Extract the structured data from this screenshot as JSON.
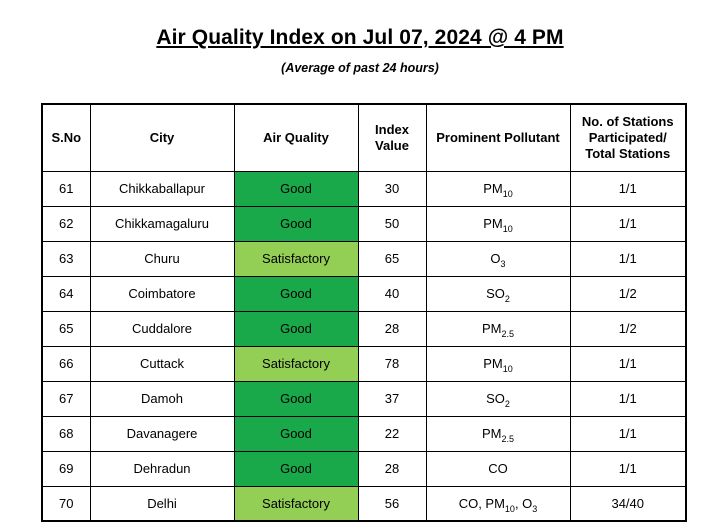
{
  "title": "Air Quality Index on Jul 07, 2024 @ 4 PM",
  "subtitle": "(Average of past 24 hours)",
  "columns": {
    "sno": "S.No",
    "city": "City",
    "air_quality": "Air Quality",
    "index_value_line1": "Index",
    "index_value_line2": "Value",
    "pollutant": "Prominent Pollutant",
    "stations_line1": "No. of Stations",
    "stations_line2": "Participated/",
    "stations_line3": "Total Stations"
  },
  "colors": {
    "Good": "#19a94a",
    "Satisfactory": "#93ce55"
  },
  "rows": [
    {
      "sno": "61",
      "city": "Chikkaballapur",
      "quality": "Good",
      "index": "30",
      "pollutant": [
        {
          "t": "PM"
        },
        {
          "t": "10",
          "sub": true
        }
      ],
      "stations": "1/1"
    },
    {
      "sno": "62",
      "city": "Chikkamagaluru",
      "quality": "Good",
      "index": "50",
      "pollutant": [
        {
          "t": "PM"
        },
        {
          "t": "10",
          "sub": true
        }
      ],
      "stations": "1/1"
    },
    {
      "sno": "63",
      "city": "Churu",
      "quality": "Satisfactory",
      "index": "65",
      "pollutant": [
        {
          "t": "O"
        },
        {
          "t": "3",
          "sub": true
        }
      ],
      "stations": "1/1"
    },
    {
      "sno": "64",
      "city": "Coimbatore",
      "quality": "Good",
      "index": "40",
      "pollutant": [
        {
          "t": "SO"
        },
        {
          "t": "2",
          "sub": true
        }
      ],
      "stations": "1/2"
    },
    {
      "sno": "65",
      "city": "Cuddalore",
      "quality": "Good",
      "index": "28",
      "pollutant": [
        {
          "t": "PM"
        },
        {
          "t": "2.5",
          "sub": true
        }
      ],
      "stations": "1/2"
    },
    {
      "sno": "66",
      "city": "Cuttack",
      "quality": "Satisfactory",
      "index": "78",
      "pollutant": [
        {
          "t": "PM"
        },
        {
          "t": "10",
          "sub": true
        }
      ],
      "stations": "1/1"
    },
    {
      "sno": "67",
      "city": "Damoh",
      "quality": "Good",
      "index": "37",
      "pollutant": [
        {
          "t": "SO"
        },
        {
          "t": "2",
          "sub": true
        }
      ],
      "stations": "1/1"
    },
    {
      "sno": "68",
      "city": "Davanagere",
      "quality": "Good",
      "index": "22",
      "pollutant": [
        {
          "t": "PM"
        },
        {
          "t": "2.5",
          "sub": true
        }
      ],
      "stations": "1/1"
    },
    {
      "sno": "69",
      "city": "Dehradun",
      "quality": "Good",
      "index": "28",
      "pollutant": [
        {
          "t": "CO"
        }
      ],
      "stations": "1/1"
    },
    {
      "sno": "70",
      "city": "Delhi",
      "quality": "Satisfactory",
      "index": "56",
      "pollutant": [
        {
          "t": "CO, PM"
        },
        {
          "t": "10",
          "sub": true
        },
        {
          "t": ", O"
        },
        {
          "t": "3",
          "sub": true
        }
      ],
      "stations": "34/40"
    }
  ]
}
